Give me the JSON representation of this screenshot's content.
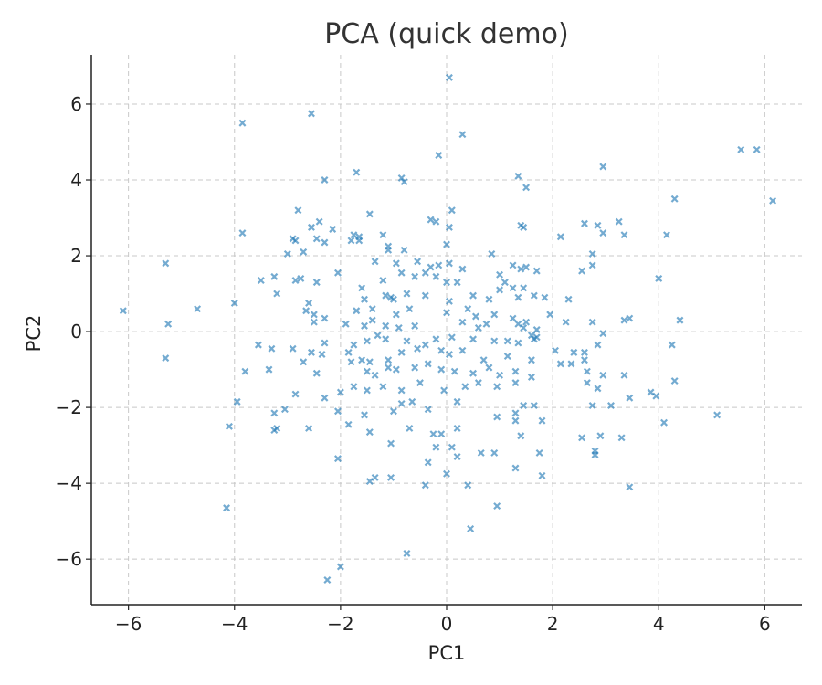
{
  "chart_data": {
    "type": "scatter",
    "title": "PCA (quick demo)",
    "xlabel": "PC1",
    "ylabel": "PC2",
    "xlim": [
      -6.7,
      6.7
    ],
    "ylim": [
      -7.2,
      7.3
    ],
    "x_ticks": [
      -6,
      -4,
      -2,
      0,
      2,
      4,
      6
    ],
    "y_ticks": [
      -6,
      -4,
      -2,
      0,
      2,
      4,
      6
    ],
    "x_tick_labels": [
      "−6",
      "−4",
      "−2",
      "0",
      "2",
      "4",
      "6"
    ],
    "y_tick_labels": [
      "−6",
      "−4",
      "−2",
      "0",
      "2",
      "4",
      "6"
    ],
    "grid": true,
    "marker": "x",
    "color": "#1f77b4",
    "points": [
      [
        0.05,
        6.7
      ],
      [
        -2.55,
        5.75
      ],
      [
        -3.85,
        5.5
      ],
      [
        0.3,
        5.2
      ],
      [
        -0.15,
        4.65
      ],
      [
        5.55,
        4.8
      ],
      [
        5.85,
        4.8
      ],
      [
        2.95,
        4.35
      ],
      [
        -1.7,
        4.2
      ],
      [
        1.35,
        4.1
      ],
      [
        -0.85,
        4.05
      ],
      [
        -2.3,
        4.0
      ],
      [
        -0.8,
        3.95
      ],
      [
        1.5,
        3.8
      ],
      [
        4.3,
        3.5
      ],
      [
        6.15,
        3.45
      ],
      [
        -1.45,
        3.1
      ],
      [
        -2.8,
        3.2
      ],
      [
        -0.3,
        2.95
      ],
      [
        -0.2,
        2.9
      ],
      [
        0.1,
        3.2
      ],
      [
        -2.4,
        2.9
      ],
      [
        -2.55,
        2.75
      ],
      [
        -2.15,
        2.7
      ],
      [
        -3.85,
        2.6
      ],
      [
        -2.9,
        2.45
      ],
      [
        -2.85,
        2.4
      ],
      [
        -2.45,
        2.45
      ],
      [
        -2.3,
        2.35
      ],
      [
        -1.75,
        2.55
      ],
      [
        -1.65,
        2.5
      ],
      [
        -1.65,
        2.4
      ],
      [
        -1.8,
        2.4
      ],
      [
        -1.2,
        2.55
      ],
      [
        -1.1,
        2.25
      ],
      [
        -1.1,
        2.15
      ],
      [
        -0.8,
        2.15
      ],
      [
        0.05,
        2.75
      ],
      [
        0.0,
        2.3
      ],
      [
        1.4,
        2.8
      ],
      [
        1.45,
        2.75
      ],
      [
        2.15,
        2.5
      ],
      [
        2.6,
        2.85
      ],
      [
        2.85,
        2.8
      ],
      [
        2.95,
        2.6
      ],
      [
        3.25,
        2.9
      ],
      [
        3.35,
        2.55
      ],
      [
        4.15,
        2.55
      ],
      [
        -3.0,
        2.05
      ],
      [
        -2.7,
        2.1
      ],
      [
        -2.05,
        1.55
      ],
      [
        -1.35,
        1.85
      ],
      [
        -0.95,
        1.8
      ],
      [
        -0.55,
        1.85
      ],
      [
        -0.3,
        1.7
      ],
      [
        -0.15,
        1.75
      ],
      [
        0.05,
        1.8
      ],
      [
        0.3,
        1.65
      ],
      [
        0.85,
        2.05
      ],
      [
        1.25,
        1.75
      ],
      [
        1.4,
        1.65
      ],
      [
        1.5,
        1.7
      ],
      [
        1.7,
        1.6
      ],
      [
        2.55,
        1.6
      ],
      [
        2.75,
        2.05
      ],
      [
        2.75,
        1.75
      ],
      [
        -5.3,
        1.8
      ],
      [
        -3.5,
        1.35
      ],
      [
        -3.25,
        1.45
      ],
      [
        -2.85,
        1.35
      ],
      [
        -2.75,
        1.4
      ],
      [
        -2.45,
        1.3
      ],
      [
        -1.6,
        1.15
      ],
      [
        -1.2,
        1.35
      ],
      [
        -0.85,
        1.55
      ],
      [
        -0.6,
        1.45
      ],
      [
        -0.4,
        1.55
      ],
      [
        -0.2,
        1.45
      ],
      [
        0.0,
        1.3
      ],
      [
        0.2,
        1.3
      ],
      [
        1.0,
        1.5
      ],
      [
        1.1,
        1.3
      ],
      [
        1.25,
        1.15
      ],
      [
        1.45,
        1.15
      ],
      [
        1.65,
        0.95
      ],
      [
        4.0,
        1.4
      ],
      [
        -3.2,
        1.0
      ],
      [
        -2.6,
        0.75
      ],
      [
        -1.55,
        0.85
      ],
      [
        -1.15,
        0.95
      ],
      [
        -1.0,
        0.85
      ],
      [
        -0.75,
        1.0
      ],
      [
        -0.4,
        0.95
      ],
      [
        0.05,
        0.8
      ],
      [
        0.5,
        0.95
      ],
      [
        0.8,
        0.85
      ],
      [
        1.0,
        1.1
      ],
      [
        1.35,
        0.9
      ],
      [
        1.85,
        0.9
      ],
      [
        2.3,
        0.85
      ],
      [
        -4.0,
        0.75
      ],
      [
        -2.65,
        0.55
      ],
      [
        -2.5,
        0.45
      ],
      [
        -2.3,
        0.35
      ],
      [
        -1.7,
        0.55
      ],
      [
        -1.4,
        0.6
      ],
      [
        -0.7,
        0.6
      ],
      [
        -0.95,
        0.45
      ],
      [
        0.0,
        0.5
      ],
      [
        0.4,
        0.6
      ],
      [
        0.9,
        0.45
      ],
      [
        1.25,
        0.35
      ],
      [
        1.5,
        0.25
      ],
      [
        1.95,
        0.45
      ],
      [
        2.75,
        0.25
      ],
      [
        3.35,
        0.3
      ],
      [
        3.45,
        0.35
      ],
      [
        4.4,
        0.3
      ],
      [
        -6.1,
        0.55
      ],
      [
        -4.7,
        0.6
      ],
      [
        -5.25,
        0.2
      ],
      [
        -2.5,
        0.25
      ],
      [
        -1.9,
        0.2
      ],
      [
        -1.55,
        0.15
      ],
      [
        -1.4,
        0.3
      ],
      [
        -1.15,
        0.15
      ],
      [
        -0.9,
        0.1
      ],
      [
        -0.6,
        0.15
      ],
      [
        0.3,
        0.25
      ],
      [
        0.6,
        0.1
      ],
      [
        0.75,
        0.2
      ],
      [
        1.35,
        0.2
      ],
      [
        1.45,
        0.1
      ],
      [
        1.7,
        0.05
      ],
      [
        2.25,
        0.25
      ],
      [
        2.95,
        -0.05
      ],
      [
        -3.55,
        -0.35
      ],
      [
        -3.3,
        -0.45
      ],
      [
        -2.9,
        -0.45
      ],
      [
        -2.3,
        -0.3
      ],
      [
        -1.75,
        -0.35
      ],
      [
        -1.5,
        -0.25
      ],
      [
        -1.3,
        -0.1
      ],
      [
        -1.15,
        -0.2
      ],
      [
        -0.75,
        -0.25
      ],
      [
        -0.4,
        -0.35
      ],
      [
        -0.2,
        -0.2
      ],
      [
        0.1,
        -0.15
      ],
      [
        0.5,
        -0.2
      ],
      [
        0.9,
        -0.25
      ],
      [
        1.15,
        -0.25
      ],
      [
        1.35,
        -0.3
      ],
      [
        1.7,
        -0.15
      ],
      [
        1.6,
        -0.1
      ],
      [
        1.65,
        -0.2
      ],
      [
        2.05,
        -0.5
      ],
      [
        2.4,
        -0.55
      ],
      [
        2.6,
        -0.55
      ],
      [
        2.85,
        -0.35
      ],
      [
        4.25,
        -0.35
      ],
      [
        -5.3,
        -0.7
      ],
      [
        -2.55,
        -0.55
      ],
      [
        -2.35,
        -0.6
      ],
      [
        -1.85,
        -0.55
      ],
      [
        -1.6,
        -0.75
      ],
      [
        -1.45,
        -0.8
      ],
      [
        -1.1,
        -0.75
      ],
      [
        -0.85,
        -0.55
      ],
      [
        -0.55,
        -0.45
      ],
      [
        -0.1,
        -0.5
      ],
      [
        0.05,
        -0.6
      ],
      [
        0.3,
        -0.5
      ],
      [
        0.7,
        -0.75
      ],
      [
        1.15,
        -0.65
      ],
      [
        1.6,
        -0.75
      ],
      [
        2.15,
        -0.85
      ],
      [
        2.35,
        -0.85
      ],
      [
        2.6,
        -0.75
      ],
      [
        -3.8,
        -1.05
      ],
      [
        -3.35,
        -1.0
      ],
      [
        -2.7,
        -0.8
      ],
      [
        -2.45,
        -1.1
      ],
      [
        -1.8,
        -0.8
      ],
      [
        -1.5,
        -1.05
      ],
      [
        -1.35,
        -1.15
      ],
      [
        -1.1,
        -0.95
      ],
      [
        -0.95,
        -1.0
      ],
      [
        -0.6,
        -0.95
      ],
      [
        -0.35,
        -0.85
      ],
      [
        -0.1,
        -1.0
      ],
      [
        0.15,
        -1.05
      ],
      [
        0.5,
        -1.1
      ],
      [
        0.8,
        -0.95
      ],
      [
        1.0,
        -1.15
      ],
      [
        1.3,
        -1.05
      ],
      [
        1.6,
        -1.2
      ],
      [
        2.65,
        -1.05
      ],
      [
        2.95,
        -1.15
      ],
      [
        3.35,
        -1.15
      ],
      [
        4.3,
        -1.3
      ],
      [
        -3.95,
        -1.85
      ],
      [
        -2.85,
        -1.65
      ],
      [
        -2.3,
        -1.75
      ],
      [
        -2.0,
        -1.6
      ],
      [
        -1.75,
        -1.45
      ],
      [
        -1.5,
        -1.55
      ],
      [
        -1.2,
        -1.45
      ],
      [
        -0.85,
        -1.55
      ],
      [
        -0.5,
        -1.35
      ],
      [
        -0.05,
        -1.55
      ],
      [
        0.35,
        -1.45
      ],
      [
        0.6,
        -1.35
      ],
      [
        0.95,
        -1.45
      ],
      [
        1.3,
        -1.35
      ],
      [
        2.65,
        -1.35
      ],
      [
        2.85,
        -1.5
      ],
      [
        3.85,
        -1.6
      ],
      [
        3.95,
        -1.7
      ],
      [
        -3.25,
        -2.15
      ],
      [
        -3.05,
        -2.05
      ],
      [
        -2.05,
        -2.1
      ],
      [
        -1.55,
        -2.2
      ],
      [
        -1.0,
        -2.1
      ],
      [
        -0.85,
        -1.9
      ],
      [
        -0.65,
        -1.85
      ],
      [
        -0.35,
        -2.05
      ],
      [
        0.2,
        -1.85
      ],
      [
        0.95,
        -2.25
      ],
      [
        1.3,
        -2.15
      ],
      [
        1.45,
        -1.95
      ],
      [
        1.65,
        -1.95
      ],
      [
        2.75,
        -1.95
      ],
      [
        3.1,
        -1.95
      ],
      [
        3.45,
        -1.75
      ],
      [
        5.1,
        -2.2
      ],
      [
        -4.1,
        -2.5
      ],
      [
        -3.25,
        -2.6
      ],
      [
        -3.2,
        -2.55
      ],
      [
        -2.6,
        -2.55
      ],
      [
        -1.85,
        -2.45
      ],
      [
        -1.45,
        -2.65
      ],
      [
        -0.7,
        -2.55
      ],
      [
        -0.25,
        -2.7
      ],
      [
        -0.1,
        -2.7
      ],
      [
        0.2,
        -2.55
      ],
      [
        1.3,
        -2.35
      ],
      [
        1.8,
        -2.35
      ],
      [
        2.55,
        -2.8
      ],
      [
        2.9,
        -2.75
      ],
      [
        3.3,
        -2.8
      ],
      [
        4.1,
        -2.4
      ],
      [
        -1.05,
        -2.95
      ],
      [
        -0.2,
        -3.05
      ],
      [
        0.1,
        -3.05
      ],
      [
        0.2,
        -3.3
      ],
      [
        0.65,
        -3.2
      ],
      [
        0.9,
        -3.2
      ],
      [
        1.4,
        -2.75
      ],
      [
        1.75,
        -3.2
      ],
      [
        2.8,
        -3.15
      ],
      [
        2.8,
        -3.25
      ],
      [
        -2.05,
        -3.35
      ],
      [
        -1.05,
        -3.85
      ],
      [
        -1.35,
        -3.85
      ],
      [
        -1.45,
        -3.95
      ],
      [
        -0.4,
        -4.05
      ],
      [
        -0.35,
        -3.45
      ],
      [
        0.0,
        -3.75
      ],
      [
        0.4,
        -4.05
      ],
      [
        1.3,
        -3.6
      ],
      [
        1.8,
        -3.8
      ],
      [
        3.45,
        -4.1
      ],
      [
        -4.15,
        -4.65
      ],
      [
        0.95,
        -4.6
      ],
      [
        0.45,
        -5.2
      ],
      [
        -0.75,
        -5.85
      ],
      [
        -2.0,
        -6.2
      ],
      [
        -2.25,
        -6.55
      ],
      [
        -1.05,
        0.9
      ],
      [
        0.55,
        0.4
      ]
    ]
  }
}
